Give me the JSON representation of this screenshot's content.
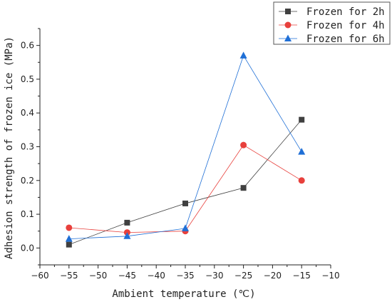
{
  "chart_data": {
    "type": "line",
    "xlabel": "Ambient temperature (℃)",
    "ylabel": "Adhesion strength of frozen ice (MPa)",
    "xlim": [
      -60,
      -10
    ],
    "ylim": [
      -0.05,
      0.65
    ],
    "x_ticks": [
      "-60",
      "-55",
      "-50",
      "-45",
      "-40",
      "-35",
      "-30",
      "-25",
      "-20",
      "-15",
      "-10"
    ],
    "y_ticks": [
      "0.0",
      "0.1",
      "0.2",
      "0.3",
      "0.4",
      "0.5",
      "0.6"
    ],
    "grid": false,
    "legend_position": "top-right",
    "x": [
      -55,
      -45,
      -35,
      -25,
      -15
    ],
    "series": [
      {
        "name": "Frozen for 2h",
        "values": [
          0.01,
          0.075,
          0.132,
          0.178,
          0.38
        ],
        "color": "#404040",
        "marker": "square"
      },
      {
        "name": "Frozen for 4h",
        "values": [
          0.06,
          0.046,
          0.05,
          0.305,
          0.2
        ],
        "color": "#e8403c",
        "marker": "circle"
      },
      {
        "name": "Frozen for 6h",
        "values": [
          0.027,
          0.035,
          0.058,
          0.57,
          0.285
        ],
        "color": "#1f6fd6",
        "marker": "triangle"
      }
    ]
  }
}
